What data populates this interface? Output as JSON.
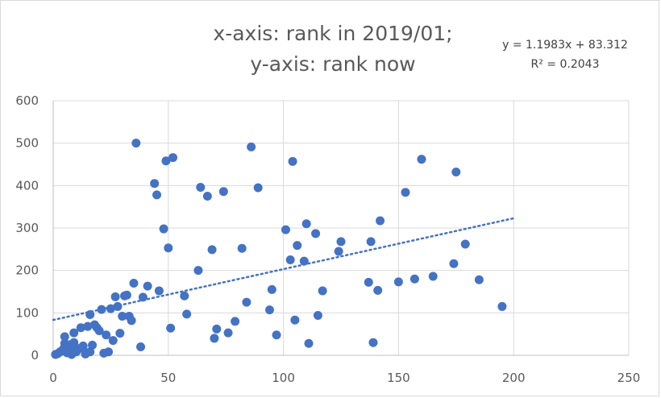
{
  "chart_data": {
    "type": "scatter",
    "title_lines": [
      "x-axis: rank in 2019/01;",
      "y-axis: rank now"
    ],
    "xlabel": "",
    "ylabel": "",
    "xlim": [
      0,
      250
    ],
    "ylim": [
      0,
      600
    ],
    "x_ticks": [
      0,
      50,
      100,
      150,
      200,
      250
    ],
    "y_ticks": [
      0,
      100,
      200,
      300,
      400,
      500,
      600
    ],
    "grid": true,
    "legend": "none",
    "trendline": {
      "type": "linear",
      "slope": 1.1983,
      "intercept": 83.312,
      "x_range": [
        0,
        200
      ],
      "equation": "y = 1.1983x + 83.312",
      "r_squared": "R² = 0.2043"
    },
    "colors": {
      "points": "#4472c4",
      "trendline": "#4472c4"
    },
    "series": [
      {
        "points": [
          [
            1,
            2
          ],
          [
            2,
            4
          ],
          [
            3,
            8
          ],
          [
            4,
            12
          ],
          [
            5,
            20
          ],
          [
            5,
            28
          ],
          [
            5,
            44
          ],
          [
            6,
            6
          ],
          [
            7,
            25
          ],
          [
            8,
            15
          ],
          [
            8,
            2
          ],
          [
            9,
            30
          ],
          [
            9,
            53
          ],
          [
            10,
            8
          ],
          [
            11,
            16
          ],
          [
            12,
            65
          ],
          [
            13,
            22
          ],
          [
            14,
            6
          ],
          [
            14,
            3
          ],
          [
            15,
            68
          ],
          [
            16,
            96
          ],
          [
            16,
            8
          ],
          [
            17,
            24
          ],
          [
            18,
            72
          ],
          [
            19,
            65
          ],
          [
            20,
            58
          ],
          [
            21,
            108
          ],
          [
            22,
            5
          ],
          [
            23,
            48
          ],
          [
            24,
            8
          ],
          [
            25,
            110
          ],
          [
            26,
            35
          ],
          [
            27,
            138
          ],
          [
            28,
            115
          ],
          [
            29,
            52
          ],
          [
            30,
            92
          ],
          [
            31,
            140
          ],
          [
            32,
            142
          ],
          [
            33,
            92
          ],
          [
            34,
            82
          ],
          [
            35,
            170
          ],
          [
            36,
            500
          ],
          [
            38,
            20
          ],
          [
            39,
            137
          ],
          [
            41,
            163
          ],
          [
            44,
            405
          ],
          [
            45,
            378
          ],
          [
            46,
            152
          ],
          [
            48,
            298
          ],
          [
            49,
            458
          ],
          [
            50,
            253
          ],
          [
            51,
            64
          ],
          [
            52,
            466
          ],
          [
            57,
            140
          ],
          [
            58,
            97
          ],
          [
            63,
            200
          ],
          [
            64,
            396
          ],
          [
            67,
            375
          ],
          [
            69,
            249
          ],
          [
            70,
            40
          ],
          [
            71,
            62
          ],
          [
            74,
            386
          ],
          [
            76,
            53
          ],
          [
            79,
            80
          ],
          [
            82,
            252
          ],
          [
            84,
            125
          ],
          [
            86,
            491
          ],
          [
            89,
            395
          ],
          [
            94,
            107
          ],
          [
            95,
            155
          ],
          [
            97,
            48
          ],
          [
            101,
            296
          ],
          [
            103,
            225
          ],
          [
            104,
            457
          ],
          [
            105,
            83
          ],
          [
            106,
            259
          ],
          [
            109,
            222
          ],
          [
            110,
            310
          ],
          [
            111,
            28
          ],
          [
            114,
            287
          ],
          [
            115,
            94
          ],
          [
            117,
            152
          ],
          [
            124,
            245
          ],
          [
            125,
            268
          ],
          [
            137,
            172
          ],
          [
            138,
            268
          ],
          [
            139,
            30
          ],
          [
            141,
            153
          ],
          [
            142,
            317
          ],
          [
            150,
            173
          ],
          [
            153,
            384
          ],
          [
            157,
            180
          ],
          [
            160,
            462
          ],
          [
            165,
            186
          ],
          [
            174,
            216
          ],
          [
            175,
            432
          ],
          [
            179,
            262
          ],
          [
            185,
            178
          ],
          [
            195,
            115
          ]
        ]
      }
    ]
  }
}
